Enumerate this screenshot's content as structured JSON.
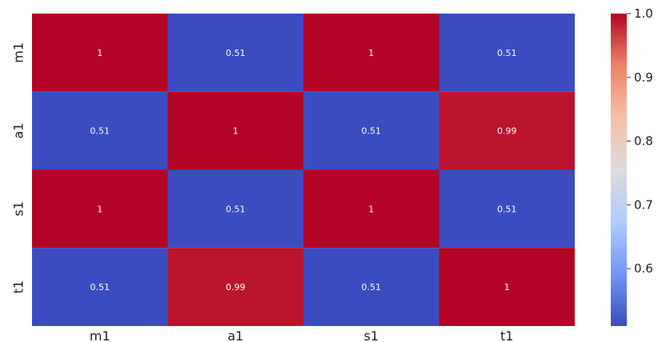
{
  "chart_data": {
    "type": "heatmap",
    "title": "",
    "rows": [
      "m1",
      "a1",
      "s1",
      "t1"
    ],
    "columns": [
      "m1",
      "a1",
      "s1",
      "t1"
    ],
    "values": [
      [
        1,
        0.51,
        1,
        0.51
      ],
      [
        0.51,
        1,
        0.51,
        0.99
      ],
      [
        1,
        0.51,
        1,
        0.51
      ],
      [
        0.51,
        0.99,
        0.51,
        1
      ]
    ],
    "annotations": [
      [
        "1",
        "0.51",
        "1",
        "0.51"
      ],
      [
        "0.51",
        "1",
        "0.51",
        "0.99"
      ],
      [
        "1",
        "0.51",
        "1",
        "0.51"
      ],
      [
        "0.51",
        "0.99",
        "0.51",
        "1"
      ]
    ],
    "colormap": "coolwarm",
    "colormap_stops": [
      "#3b4cc0",
      "#7396f5",
      "#b0cbfc",
      "#dddcdc",
      "#f6bfa6",
      "#ec8467",
      "#b40426"
    ],
    "vmin": 0.51,
    "vmax": 1.0,
    "colorbar": {
      "ticks": [
        0.6,
        0.7,
        0.8,
        0.9,
        1.0
      ],
      "tick_labels": [
        "0.6",
        "0.7",
        "0.8",
        "0.9",
        "1.0"
      ]
    }
  }
}
